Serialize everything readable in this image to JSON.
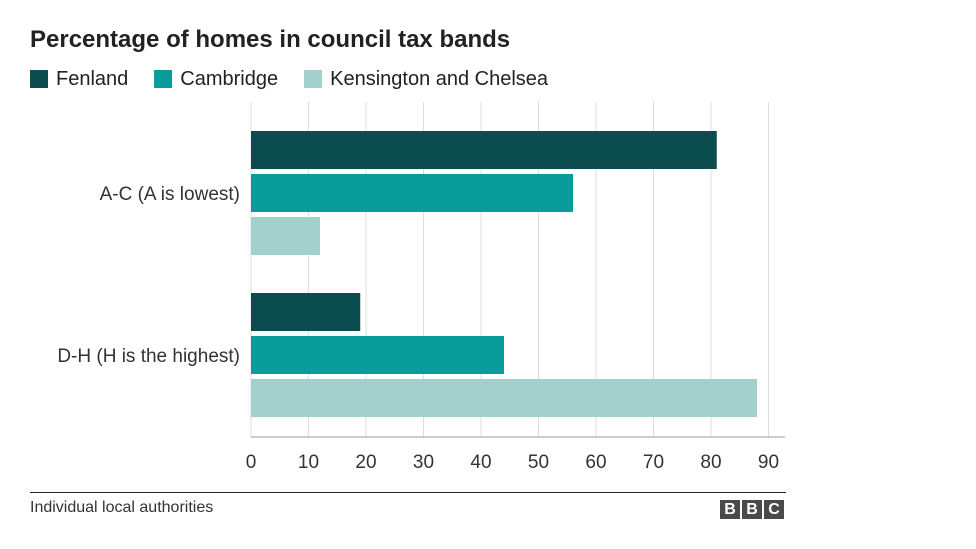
{
  "header": {
    "title": "Percentage of homes in council tax bands"
  },
  "legend": [
    {
      "label": "Fenland",
      "color": "#0b4d4f"
    },
    {
      "label": "Cambridge",
      "color": "#0a9b9b"
    },
    {
      "label": "Kensington and Chelsea",
      "color": "#a3cfcd"
    }
  ],
  "chart_data": {
    "type": "bar",
    "orientation": "horizontal",
    "title": "Percentage of homes in council tax bands",
    "categories": [
      "A-C (A is lowest)",
      "D-H (H is the highest)"
    ],
    "series": [
      {
        "name": "Fenland",
        "values": [
          81,
          19
        ],
        "color": "#0b4d4f"
      },
      {
        "name": "Cambridge",
        "values": [
          56,
          44
        ],
        "color": "#0a9b9b"
      },
      {
        "name": "Kensington and Chelsea",
        "values": [
          12,
          88
        ],
        "color": "#a3cfcd"
      }
    ],
    "xlim": [
      0,
      92
    ],
    "xticks": [
      0,
      10,
      20,
      30,
      40,
      50,
      60,
      70,
      80,
      90
    ],
    "grid": true,
    "legend_position": "top-left"
  },
  "footer": {
    "source": "Individual local authorities",
    "logo": "BBC"
  }
}
